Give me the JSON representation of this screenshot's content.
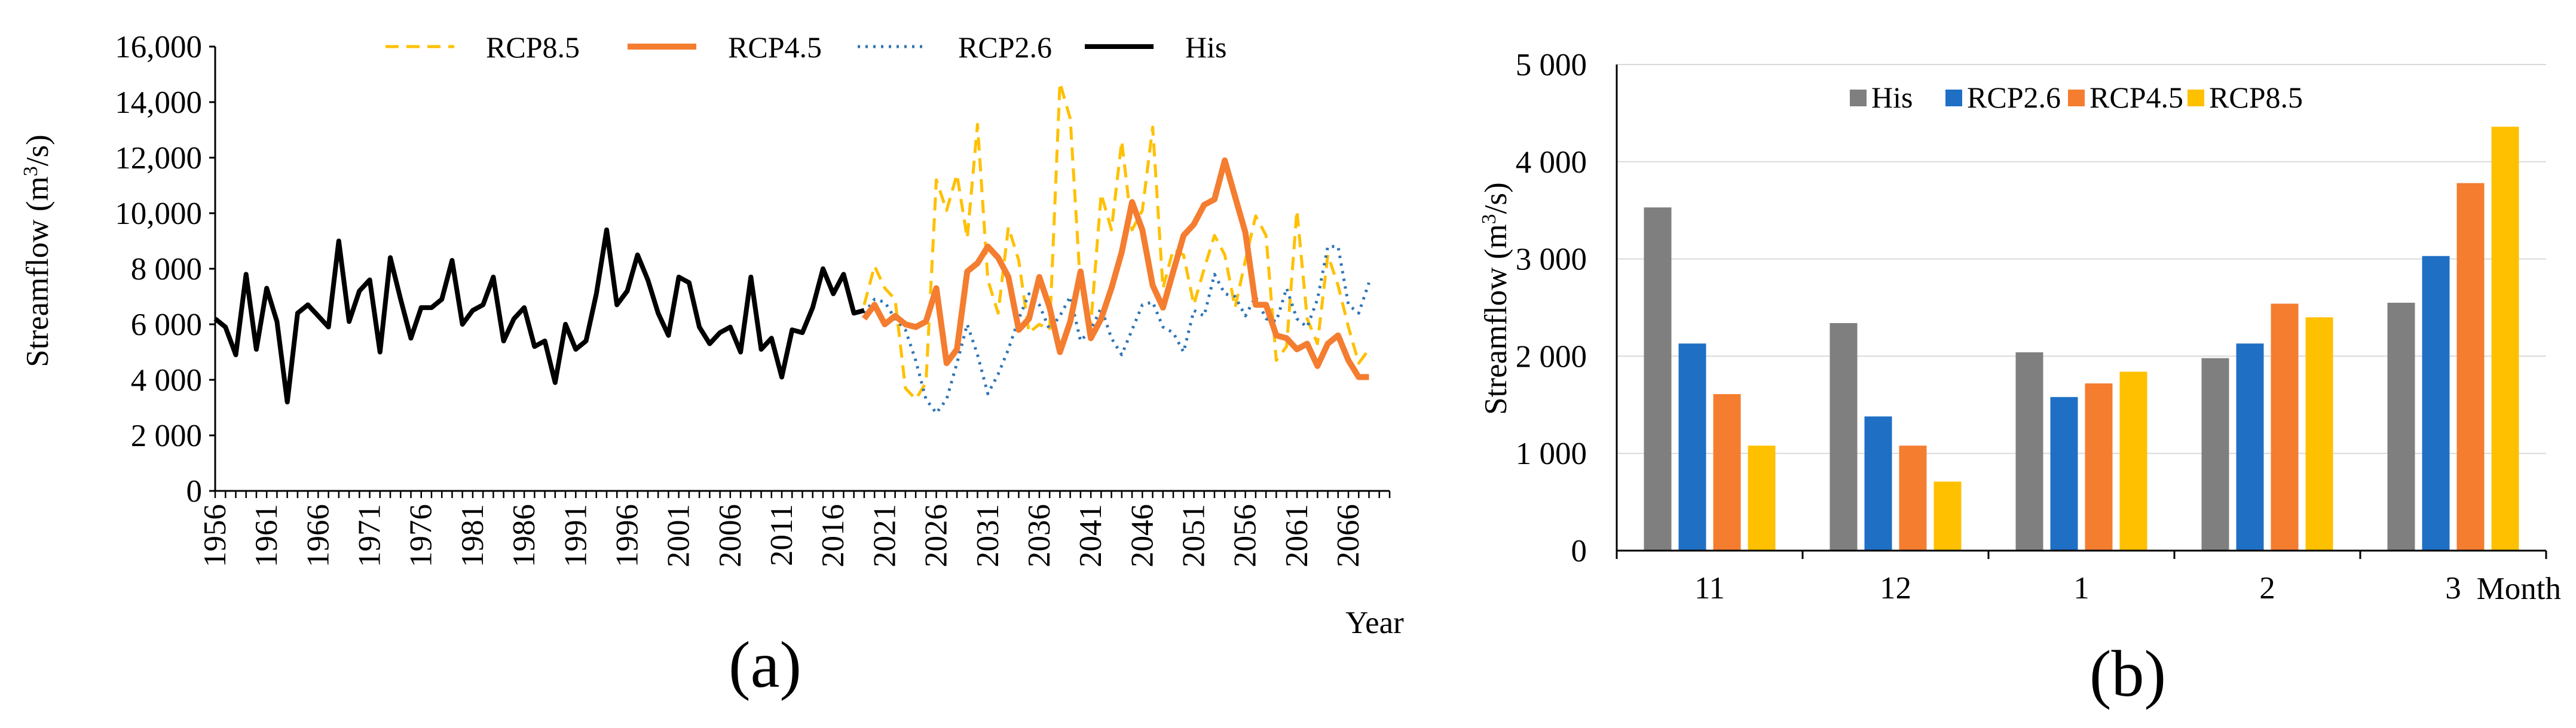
{
  "colors": {
    "His": "#000000",
    "RCP2.6": "#2E75B6",
    "RCP4.5": "#F47D30",
    "RCP8.5": "#FFC000",
    "His_bar": "#7F7F7F",
    "RCP2.6_bar": "#1F6FC5"
  },
  "chart_data": [
    {
      "type": "line",
      "panel_label": "(a)",
      "xlabel": "Year",
      "ylabel": "Streamflow (m³/s)",
      "ylim": [
        0,
        16000
      ],
      "yticks": [
        0,
        2000,
        4000,
        6000,
        8000,
        10000,
        12000,
        14000,
        16000
      ],
      "ytick_labels": [
        "0",
        "2 000",
        "4 000",
        "6 000",
        "8 000",
        "10,000",
        "12,000",
        "14,000",
        "16,000"
      ],
      "xlim": [
        1956,
        2070
      ],
      "xticks": [
        1956,
        1961,
        1966,
        1971,
        1976,
        1981,
        1986,
        1991,
        1996,
        2001,
        2006,
        2011,
        2016,
        2021,
        2026,
        2031,
        2036,
        2041,
        2046,
        2051,
        2056,
        2061,
        2066
      ],
      "legend_position": "top",
      "grid": false,
      "series": [
        {
          "name": "His",
          "x_start": 1956,
          "values": [
            6200,
            5900,
            4900,
            7800,
            5100,
            7300,
            6100,
            3200,
            6400,
            6700,
            6300,
            5900,
            9000,
            6100,
            7200,
            7600,
            5000,
            8400,
            6900,
            5500,
            6600,
            6600,
            6900,
            8300,
            6000,
            6500,
            6700,
            7700,
            5400,
            6200,
            6600,
            5200,
            5400,
            3900,
            6000,
            5100,
            5400,
            7100,
            9400,
            6700,
            7200,
            8500,
            7600,
            6400,
            5600,
            7700,
            7500,
            5900,
            5300,
            5700,
            5900,
            5000,
            7700,
            5100,
            5500,
            4100,
            5800,
            5700,
            6600,
            8000,
            7100,
            7800,
            6400,
            6500
          ]
        },
        {
          "name": "RCP2.6",
          "x_start": 2019,
          "values": [
            6400,
            6900,
            6800,
            6200,
            5800,
            4700,
            3300,
            2800,
            3300,
            4600,
            6000,
            4900,
            3500,
            4200,
            5100,
            6200,
            7100,
            6700,
            5800,
            6300,
            7000,
            5400,
            5800,
            6600,
            5500,
            4900,
            5800,
            6700,
            6800,
            5900,
            5700,
            5000,
            6500,
            6300,
            7800,
            7100,
            7000,
            6300,
            7000,
            6200,
            6100,
            7300,
            6200,
            5900,
            6900,
            8800,
            8800,
            6700,
            6400,
            7500
          ]
        },
        {
          "name": "RCP4.5",
          "x_start": 2019,
          "values": [
            6200,
            6700,
            6000,
            6300,
            6000,
            5900,
            6100,
            7300,
            4600,
            5100,
            7900,
            8200,
            8800,
            8400,
            7700,
            5800,
            6200,
            7700,
            6600,
            5000,
            6100,
            7900,
            5500,
            6200,
            7300,
            8600,
            10400,
            9400,
            7400,
            6600,
            7900,
            9200,
            9600,
            10300,
            10500,
            11900,
            10600,
            9300,
            6700,
            6700,
            5600,
            5500,
            5100,
            5300,
            4500,
            5300,
            5600,
            4700,
            4100,
            4100
          ]
        },
        {
          "name": "RCP8.5",
          "x_start": 2019,
          "values": [
            6700,
            8100,
            7300,
            6900,
            3700,
            3300,
            3900,
            11200,
            10100,
            11400,
            9100,
            13200,
            7600,
            6400,
            9500,
            8300,
            5700,
            6000,
            5800,
            14700,
            13400,
            7300,
            6000,
            10700,
            9400,
            12600,
            9400,
            10100,
            13100,
            7300,
            8700,
            8500,
            6700,
            8000,
            9200,
            8500,
            6600,
            8300,
            9900,
            9200,
            4700,
            5200,
            10100,
            6200,
            5300,
            8500,
            7400,
            5900,
            4600,
            5100
          ]
        }
      ]
    },
    {
      "type": "bar",
      "panel_label": "(b)",
      "xlabel": "Month",
      "ylabel": "Streamflow (m³/s)",
      "ylim": [
        0,
        5000
      ],
      "yticks": [
        0,
        1000,
        2000,
        3000,
        4000,
        5000
      ],
      "ytick_labels": [
        "0",
        "1 000",
        "2 000",
        "3 000",
        "4 000",
        "5 000"
      ],
      "categories": [
        "11",
        "12",
        "1",
        "2",
        "3"
      ],
      "legend_position": "top",
      "grid": true,
      "series": [
        {
          "name": "His",
          "values": [
            3530,
            2340,
            2040,
            1980,
            2550
          ]
        },
        {
          "name": "RCP2.6",
          "values": [
            2130,
            1380,
            1580,
            2130,
            3030
          ]
        },
        {
          "name": "RCP4.5",
          "values": [
            1610,
            1080,
            1720,
            2540,
            3780
          ]
        },
        {
          "name": "RCP8.5",
          "values": [
            1080,
            710,
            1840,
            2400,
            4360
          ]
        }
      ]
    }
  ]
}
